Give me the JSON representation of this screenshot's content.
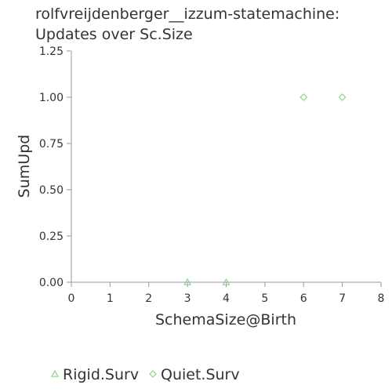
{
  "chart_data": {
    "type": "scatter",
    "title_lines": [
      "rolfvreijdenberger__izzum-statemachine:",
      "Updates over Sc.Size"
    ],
    "xlabel": "SchemaSize@Birth",
    "ylabel": "SumUpd",
    "xlim": [
      0,
      8
    ],
    "ylim": [
      0,
      1.25
    ],
    "x_ticks": [
      {
        "value": 0,
        "label": "0"
      },
      {
        "value": 1,
        "label": "1"
      },
      {
        "value": 2,
        "label": "2"
      },
      {
        "value": 3,
        "label": "3"
      },
      {
        "value": 4,
        "label": "4"
      },
      {
        "value": 5,
        "label": "5"
      },
      {
        "value": 6,
        "label": "6"
      },
      {
        "value": 7,
        "label": "7"
      },
      {
        "value": 8,
        "label": "8"
      }
    ],
    "y_ticks": [
      {
        "value": 0,
        "label": "0.00"
      },
      {
        "value": 0.25,
        "label": "0.25"
      },
      {
        "value": 0.5,
        "label": "0.50"
      },
      {
        "value": 0.75,
        "label": "0.75"
      },
      {
        "value": 1.0,
        "label": "1.00"
      },
      {
        "value": 1.25,
        "label": "1.25"
      }
    ],
    "grid": false,
    "legend_position": "bottom",
    "series": [
      {
        "name": "Rigid.Surv",
        "marker": "triangle",
        "color": "#7fc97f",
        "x": [
          3,
          4
        ],
        "y": [
          0,
          0
        ]
      },
      {
        "name": "Quiet.Surv",
        "marker": "diamond",
        "color": "#7fc97f",
        "x": [
          6,
          7
        ],
        "y": [
          1,
          1
        ]
      }
    ]
  }
}
